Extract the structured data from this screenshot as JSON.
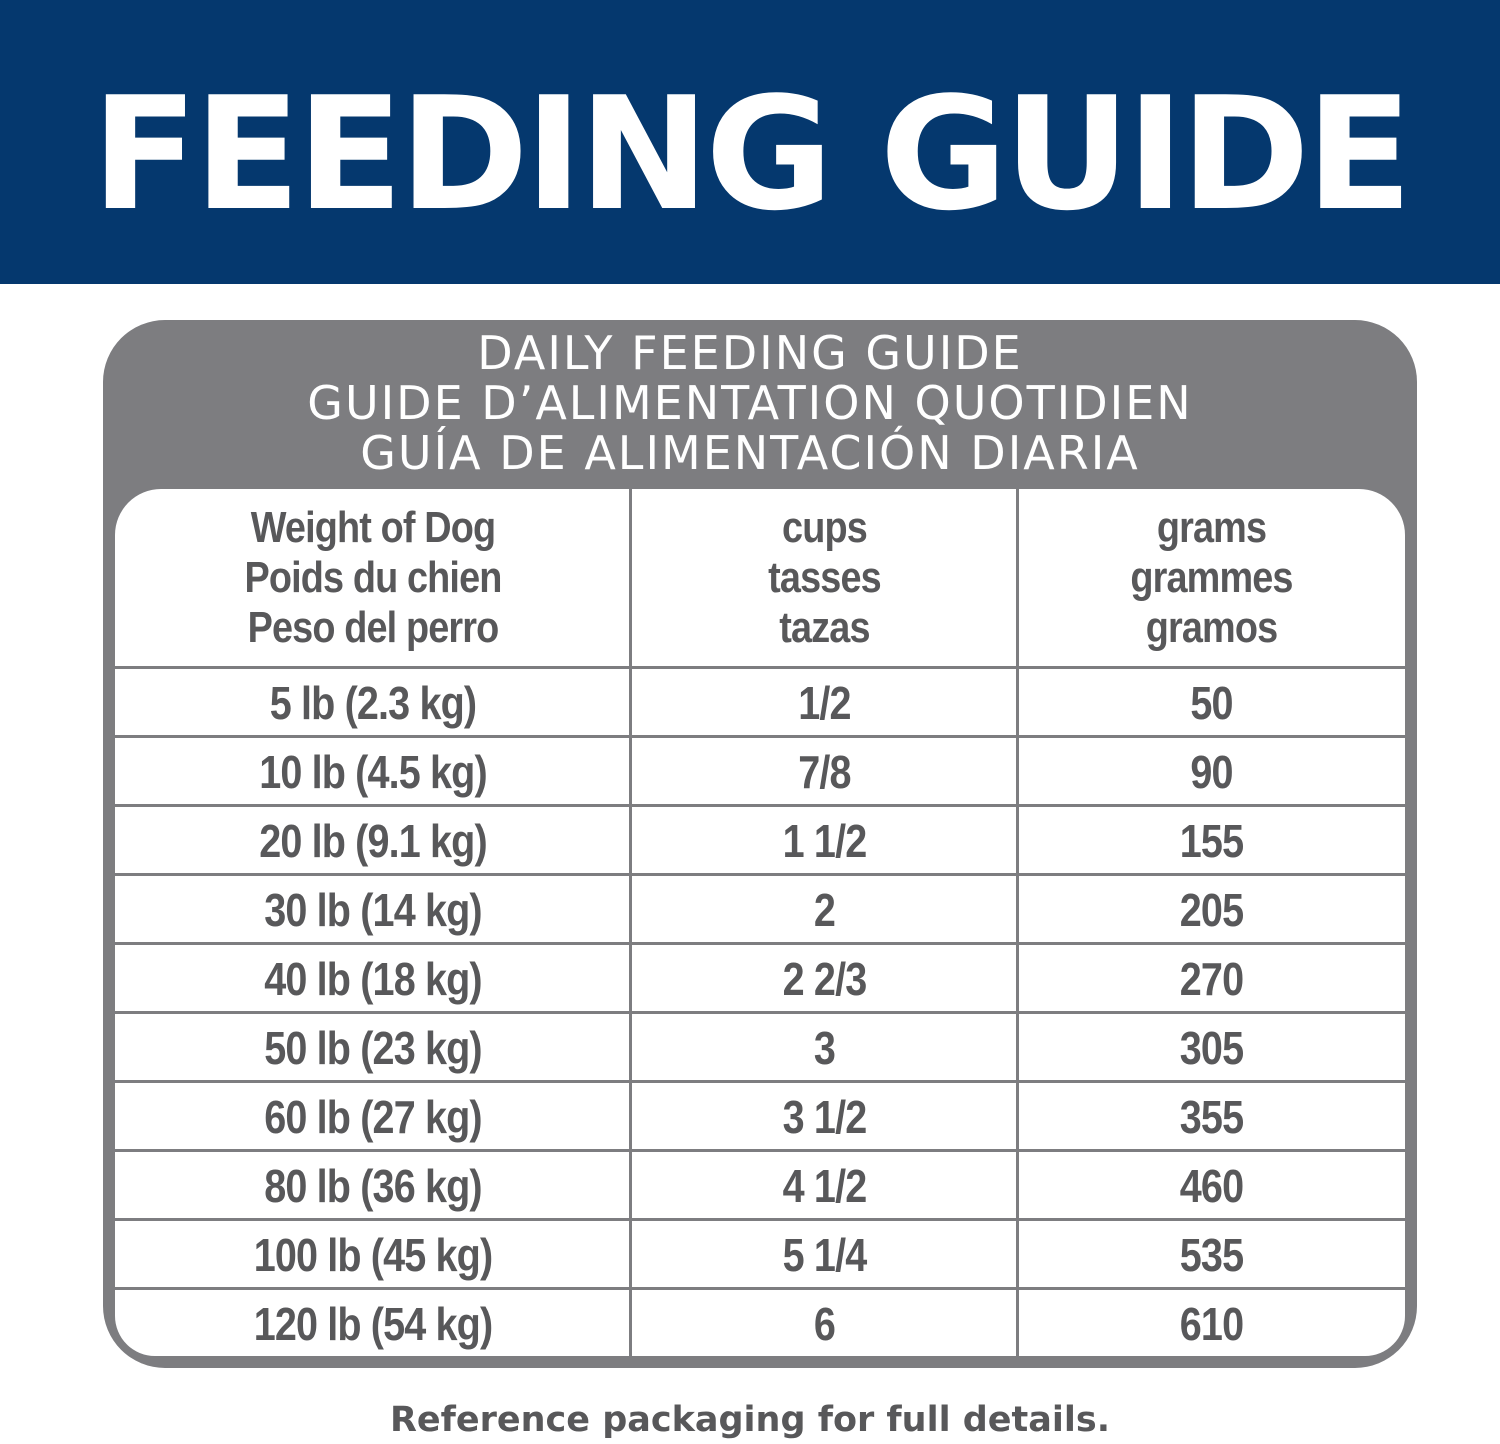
{
  "banner": {
    "title": "FEEDING GUIDE",
    "background_color": "#05386e"
  },
  "guide": {
    "headings": [
      "DAILY FEEDING GUIDE",
      "GUIDE D’ALIMENTATION QUOTIDIEN",
      "GUÍA DE ALIMENTACIÓN DIARIA"
    ],
    "frame_color": "#7d7d80",
    "columns": [
      {
        "lines": [
          "Weight of Dog",
          "Poids du chien",
          "Peso del perro"
        ]
      },
      {
        "lines": [
          "cups",
          "tasses",
          "tazas"
        ]
      },
      {
        "lines": [
          "grams",
          "grammes",
          "gramos"
        ]
      }
    ],
    "rows": [
      {
        "weight": "5 lb (2.3 kg)",
        "cups": "1/2",
        "grams": "50"
      },
      {
        "weight": "10 lb (4.5 kg)",
        "cups": "7/8",
        "grams": "90"
      },
      {
        "weight": "20 lb (9.1 kg)",
        "cups": "1 1/2",
        "grams": "155"
      },
      {
        "weight": "30 lb (14 kg)",
        "cups": "2",
        "grams": "205"
      },
      {
        "weight": "40 lb (18 kg)",
        "cups": "2 2/3",
        "grams": "270"
      },
      {
        "weight": "50 lb (23 kg)",
        "cups": "3",
        "grams": "305"
      },
      {
        "weight": "60 lb (27 kg)",
        "cups": "3 1/2",
        "grams": "355"
      },
      {
        "weight": "80 lb (36 kg)",
        "cups": "4 1/2",
        "grams": "460"
      },
      {
        "weight": "100 lb (45 kg)",
        "cups": "5 1/4",
        "grams": "535"
      },
      {
        "weight": "120 lb (54 kg)",
        "cups": "6",
        "grams": "610"
      }
    ]
  },
  "footer": {
    "note": "Reference packaging for full details."
  }
}
